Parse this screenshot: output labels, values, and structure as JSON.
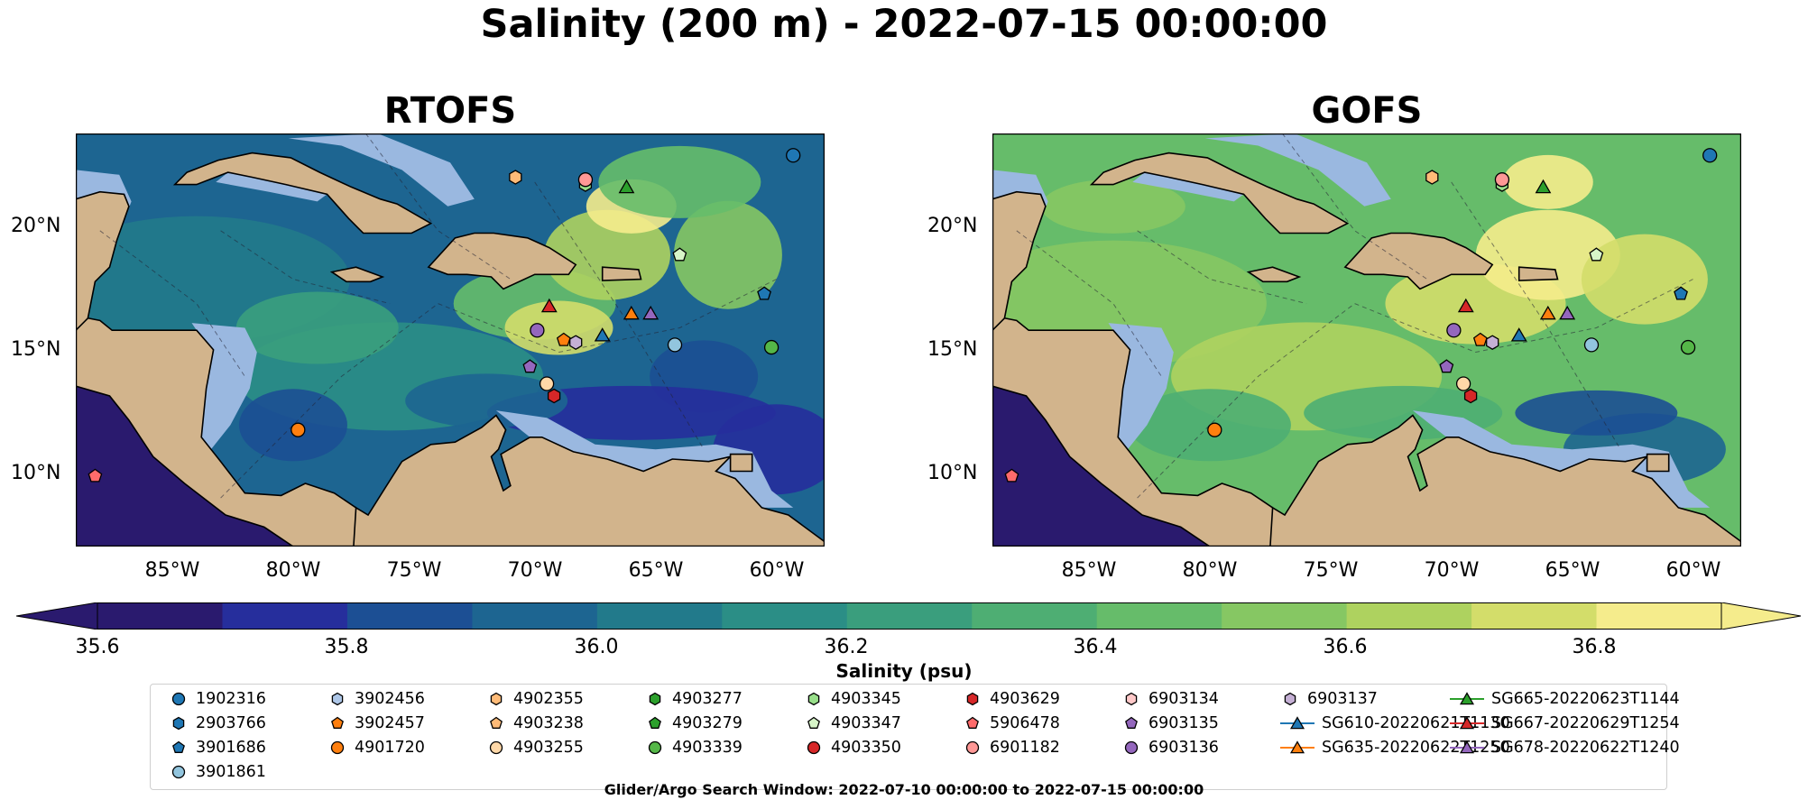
{
  "title": "Salinity (200 m) - 2022-07-15 00:00:00",
  "panels": [
    {
      "title": "RTOFS"
    },
    {
      "title": "GOFS"
    }
  ],
  "lat_labels": [
    "20°N",
    "15°N",
    "10°N"
  ],
  "lon_labels": [
    "85°W",
    "80°W",
    "75°W",
    "70°W",
    "65°W",
    "60°W"
  ],
  "map_extent": {
    "lon_min": -89,
    "lon_max": -58,
    "lat_min": 7,
    "lat_max": 24
  },
  "colorbar": {
    "label": "Salinity (psu)",
    "ticks": [
      "35.6",
      "35.8",
      "36.0",
      "36.2",
      "36.4",
      "36.6",
      "36.8"
    ],
    "min": 35.6,
    "max": 36.9,
    "extend": "both",
    "colors": [
      "#2a1a6e",
      "#262e9c",
      "#1c4f94",
      "#1d6591",
      "#227a8b",
      "#2b8e86",
      "#3a9e7d",
      "#4eae73",
      "#66bc6a",
      "#86c763",
      "#aed25f",
      "#d3dd6a",
      "#f5ec8c"
    ]
  },
  "legend": {
    "items": [
      {
        "label": "1902316",
        "marker": "circle",
        "color": "#1f77b4"
      },
      {
        "label": "2903766",
        "marker": "hexagon",
        "color": "#1f77b4"
      },
      {
        "label": "3901686",
        "marker": "pentagon",
        "color": "#1f77b4"
      },
      {
        "label": "3901861",
        "marker": "circle",
        "color": "#92c5de"
      },
      {
        "label": "3902456",
        "marker": "hexagon",
        "color": "#aec7e8"
      },
      {
        "label": "3902457",
        "marker": "pentagon",
        "color": "#ff7f0e"
      },
      {
        "label": "4901720",
        "marker": "circle",
        "color": "#ff7f0e"
      },
      {
        "label": "4902355",
        "marker": "hexagon",
        "color": "#ffbb78"
      },
      {
        "label": "4903238",
        "marker": "pentagon",
        "color": "#ffbb78"
      },
      {
        "label": "4903255",
        "marker": "circle",
        "color": "#ffd8a8"
      },
      {
        "label": "4903277",
        "marker": "hexagon",
        "color": "#2ca02c"
      },
      {
        "label": "4903279",
        "marker": "pentagon",
        "color": "#2ca02c"
      },
      {
        "label": "4903339",
        "marker": "circle",
        "color": "#55b748"
      },
      {
        "label": "4903345",
        "marker": "hexagon",
        "color": "#98df8a"
      },
      {
        "label": "4903347",
        "marker": "pentagon",
        "color": "#d7f5c8"
      },
      {
        "label": "4903350",
        "marker": "circle",
        "color": "#d62728"
      },
      {
        "label": "4903629",
        "marker": "hexagon",
        "color": "#d62728"
      },
      {
        "label": "5906478",
        "marker": "pentagon",
        "color": "#ff6b6b"
      },
      {
        "label": "6901182",
        "marker": "circle",
        "color": "#ff9896"
      },
      {
        "label": "6903134",
        "marker": "hexagon",
        "color": "#ffc9c9"
      },
      {
        "label": "6903135",
        "marker": "pentagon",
        "color": "#9467bd"
      },
      {
        "label": "6903136",
        "marker": "circle",
        "color": "#9467bd"
      },
      {
        "label": "6903137",
        "marker": "hexagon",
        "color": "#c5b0d5"
      },
      {
        "label": "SG610-20220621T1130",
        "marker": "triangle-line",
        "color": "#1f77b4"
      },
      {
        "label": "SG635-20220622T1250",
        "marker": "triangle-line",
        "color": "#ff7f0e"
      },
      {
        "label": "SG665-20220623T1144",
        "marker": "triangle-line",
        "color": "#2ca02c"
      },
      {
        "label": "SG667-20220629T1254",
        "marker": "triangle-line",
        "color": "#d62728"
      },
      {
        "label": "SG678-20220622T1240",
        "marker": "triangle-line",
        "color": "#9467bd"
      }
    ]
  },
  "observations": [
    {
      "id": "1902316",
      "lon": -59.3,
      "lat": 23.1,
      "marker": "circle",
      "color": "#1f77b4"
    },
    {
      "id": "3901686",
      "lon": -60.5,
      "lat": 17.4,
      "marker": "pentagon",
      "color": "#1f77b4"
    },
    {
      "id": "3901861",
      "lon": -64.2,
      "lat": 15.3,
      "marker": "circle",
      "color": "#92c5de"
    },
    {
      "id": "4902355",
      "lon": -70.8,
      "lat": 22.2,
      "marker": "hexagon",
      "color": "#ffbb78"
    },
    {
      "id": "4901720",
      "lon": -79.8,
      "lat": 11.8,
      "marker": "circle",
      "color": "#ff7f0e"
    },
    {
      "id": "3902457",
      "lon": -68.8,
      "lat": 15.5,
      "marker": "pentagon",
      "color": "#ff7f0e"
    },
    {
      "id": "4903255",
      "lon": -69.5,
      "lat": 13.7,
      "marker": "circle",
      "color": "#ffd8a8"
    },
    {
      "id": "4903339",
      "lon": -60.2,
      "lat": 15.2,
      "marker": "circle",
      "color": "#55b748"
    },
    {
      "id": "4903345",
      "lon": -67.9,
      "lat": 21.9,
      "marker": "hexagon",
      "color": "#98df8a"
    },
    {
      "id": "4903347",
      "lon": -64.0,
      "lat": 19.0,
      "marker": "pentagon",
      "color": "#d7f5c8"
    },
    {
      "id": "4903629",
      "lon": -69.2,
      "lat": 13.2,
      "marker": "hexagon",
      "color": "#d62728"
    },
    {
      "id": "5906478",
      "lon": -88.2,
      "lat": 9.9,
      "marker": "pentagon",
      "color": "#ff6b6b"
    },
    {
      "id": "6901182",
      "lon": -67.9,
      "lat": 22.1,
      "marker": "circle",
      "color": "#ff9896"
    },
    {
      "id": "6903135",
      "lon": -70.2,
      "lat": 14.4,
      "marker": "pentagon",
      "color": "#9467bd"
    },
    {
      "id": "6903136",
      "lon": -69.9,
      "lat": 15.9,
      "marker": "circle",
      "color": "#9467bd"
    },
    {
      "id": "6903137",
      "lon": -68.3,
      "lat": 15.4,
      "marker": "hexagon",
      "color": "#c5b0d5"
    },
    {
      "id": "SG610-20220621T1130",
      "lon": -67.2,
      "lat": 15.7,
      "marker": "triangle",
      "color": "#1f77b4"
    },
    {
      "id": "SG635-20220622T1250",
      "lon": -66.0,
      "lat": 16.6,
      "marker": "triangle",
      "color": "#ff7f0e"
    },
    {
      "id": "SG665-20220623T1144",
      "lon": -66.2,
      "lat": 21.8,
      "marker": "triangle",
      "color": "#2ca02c"
    },
    {
      "id": "SG667-20220629T1254",
      "lon": -69.4,
      "lat": 16.9,
      "marker": "triangle",
      "color": "#d62728"
    },
    {
      "id": "SG678-20220622T1240",
      "lon": -65.2,
      "lat": 16.6,
      "marker": "triangle",
      "color": "#9467bd"
    }
  ],
  "colors": {
    "land": "#d2b48c",
    "shelf": "#9ab8e0",
    "deep": "#2a1a6e"
  },
  "search_window": "Glider/Argo Search Window: 2022-07-10 00:00:00 to 2022-07-15 00:00:00"
}
